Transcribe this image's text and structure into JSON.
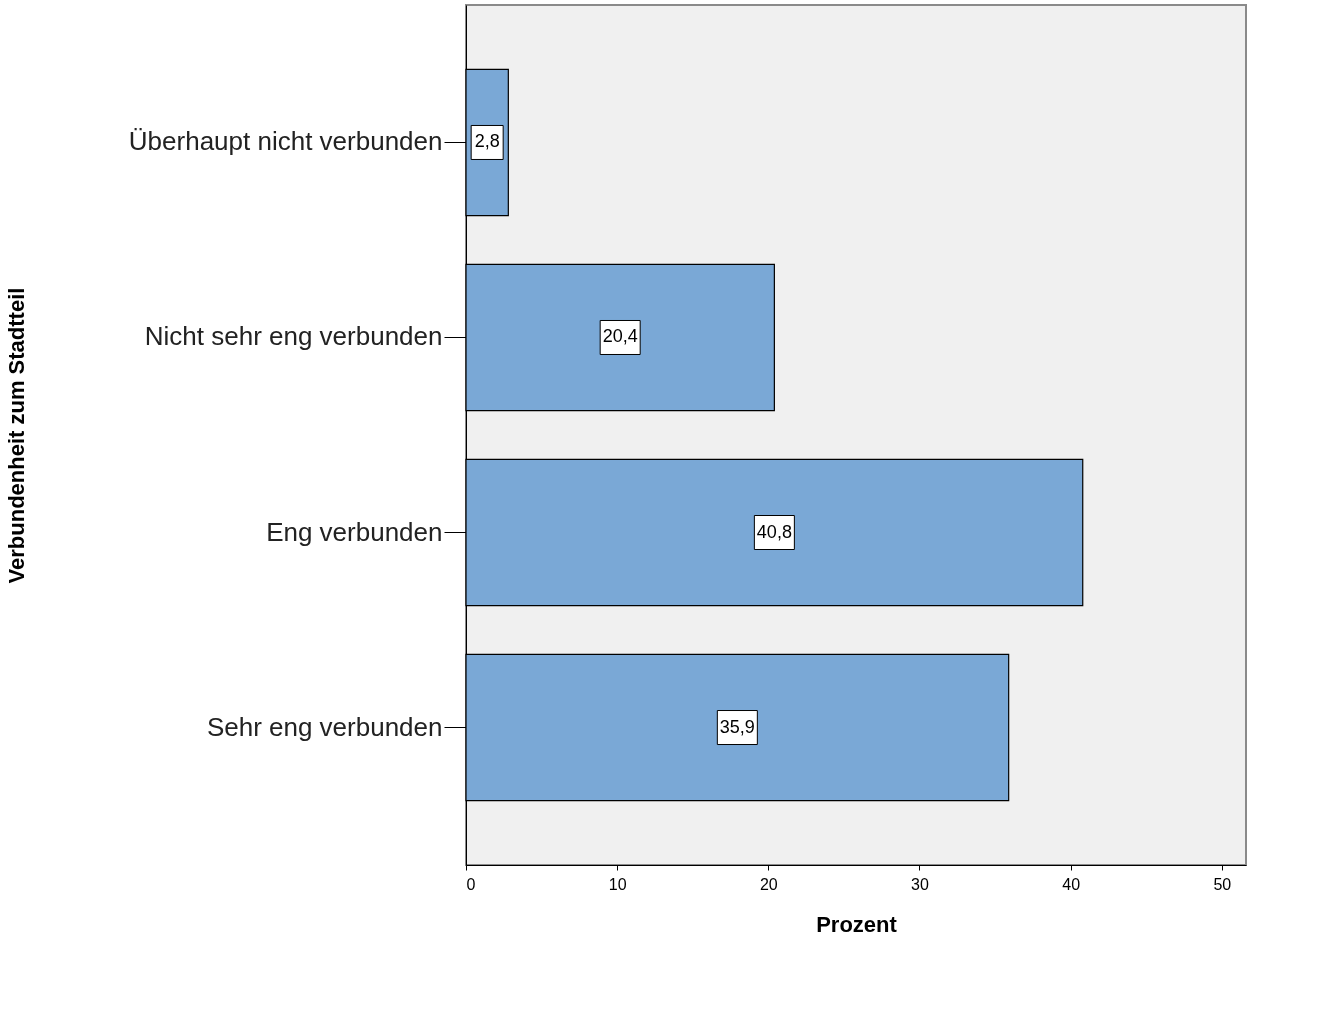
{
  "chart_data": {
    "type": "bar",
    "orientation": "horizontal",
    "xlabel": "Prozent",
    "ylabel": "Verbundenheit zum Stadtteil",
    "categories": [
      "Überhaupt nicht verbunden",
      "Nicht sehr eng verbunden",
      "Eng verbunden",
      "Sehr eng verbunden"
    ],
    "values": [
      2.8,
      20.4,
      40.8,
      35.9
    ],
    "value_labels": [
      "2,8",
      "20,4",
      "40,8",
      "35,9"
    ],
    "color": "#7aa8d6",
    "xlim": [
      0,
      51.6
    ],
    "xticks": [
      0,
      10,
      20,
      30,
      40,
      50
    ],
    "grid": false
  }
}
